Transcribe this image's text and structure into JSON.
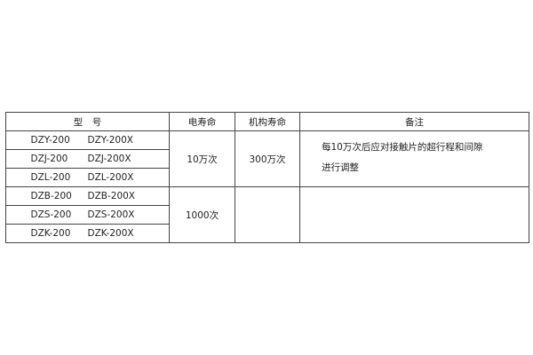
{
  "headers": {
    "model": "型　号",
    "electrical_life": "电寿命",
    "mechanical_life": "机构寿命",
    "remarks": "备注"
  },
  "rows": [
    {
      "model_a": "DZY-200",
      "model_b": "DZY-200X"
    },
    {
      "model_a": "DZJ-200",
      "model_b": "DZJ-200X"
    },
    {
      "model_a": "DZL-200",
      "model_b": "DZL-200X"
    },
    {
      "model_a": "DZB-200",
      "model_b": "DZB-200X"
    },
    {
      "model_a": "DZS-200",
      "model_b": "DZS-200X"
    },
    {
      "model_a": "DZK-200",
      "model_b": "DZK-200X"
    }
  ],
  "groups": [
    {
      "electrical_life": "10万次",
      "mechanical_life": "300万次",
      "remarks_line1": "每10万次后应对接触片的超行程和间隙",
      "remarks_line2": "进行调整"
    },
    {
      "electrical_life": "1000次",
      "mechanical_life": "",
      "remarks_line1": "",
      "remarks_line2": ""
    }
  ]
}
